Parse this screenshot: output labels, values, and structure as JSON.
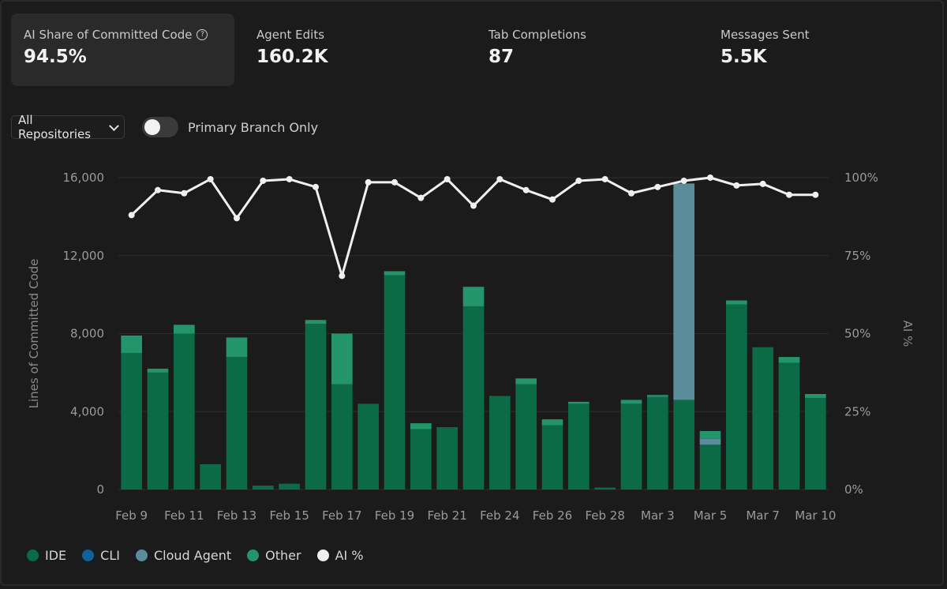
{
  "stats": [
    {
      "label": "AI Share of Committed Code",
      "value": "94.5%"
    },
    {
      "label": "Agent Edits",
      "value": "160.2K"
    },
    {
      "label": "Tab Completions",
      "value": "87"
    },
    {
      "label": "Messages Sent",
      "value": "5.5K"
    }
  ],
  "help_icon_glyph": "?",
  "filters": {
    "repository": "All Repositories",
    "primary_branch_label": "Primary Branch Only",
    "primary_branch_on": false
  },
  "colors": {
    "ide": "#0b6b47",
    "cli": "#135f99",
    "cloud_agent": "#5b8c9a",
    "other": "#24946a",
    "ai_line": "#f0f0f0"
  },
  "chart_data": {
    "type": "bar",
    "stacked": true,
    "ylabel": "Lines of Committed Code",
    "y2label": "AI %",
    "ylim": [
      0,
      16000
    ],
    "yticks": [
      "0",
      "4,000",
      "8,000",
      "12,000",
      "16,000"
    ],
    "y2ticks": [
      "0%",
      "25%",
      "50%",
      "75%",
      "100%"
    ],
    "categories": [
      "Feb 9",
      "Feb 10",
      "Feb 11",
      "Feb 12",
      "Feb 13",
      "Feb 14",
      "Feb 15",
      "Feb 16",
      "Feb 17",
      "Feb 18",
      "Feb 19",
      "Feb 20",
      "Feb 21",
      "Feb 22",
      "Feb 24",
      "Feb 25",
      "Feb 26",
      "Feb 27",
      "Feb 28",
      "Mar 1",
      "Mar 3",
      "Mar 4",
      "Mar 5",
      "Mar 6",
      "Mar 7",
      "Mar 8",
      "Mar 10"
    ],
    "xticks": [
      "Feb 9",
      "Feb 11",
      "Feb 13",
      "Feb 15",
      "Feb 17",
      "Feb 19",
      "Feb 21",
      "Feb 24",
      "Feb 26",
      "Feb 28",
      "Mar 3",
      "Mar 5",
      "Mar 7",
      "Mar 10"
    ],
    "series": [
      {
        "name": "IDE",
        "key": "ide",
        "values": [
          7000,
          6000,
          8000,
          1300,
          6800,
          200,
          300,
          8500,
          5400,
          4400,
          11000,
          3100,
          3200,
          9400,
          4800,
          5400,
          3300,
          4400,
          100,
          4400,
          4700,
          4600,
          2300,
          9500,
          7300,
          6500,
          4700
        ]
      },
      {
        "name": "CLI",
        "key": "cli",
        "values": [
          0,
          0,
          0,
          0,
          0,
          0,
          0,
          0,
          0,
          0,
          0,
          0,
          0,
          0,
          0,
          0,
          0,
          0,
          0,
          0,
          50,
          0,
          0,
          0,
          0,
          0,
          0
        ]
      },
      {
        "name": "Cloud Agent",
        "key": "cloud_agent",
        "values": [
          0,
          0,
          0,
          0,
          0,
          0,
          0,
          0,
          0,
          0,
          0,
          0,
          0,
          0,
          0,
          0,
          0,
          0,
          0,
          0,
          0,
          11100,
          300,
          0,
          0,
          0,
          0
        ]
      },
      {
        "name": "Other",
        "key": "other",
        "values": [
          900,
          200,
          450,
          0,
          1000,
          0,
          0,
          200,
          2600,
          0,
          200,
          300,
          0,
          1000,
          0,
          300,
          300,
          100,
          0,
          200,
          100,
          0,
          400,
          200,
          0,
          300,
          200
        ]
      }
    ],
    "ai_percent": [
      88,
      96,
      95,
      99.5,
      87,
      99,
      99.5,
      97,
      68.5,
      98.5,
      98.5,
      93.5,
      99.5,
      91,
      99.5,
      96,
      93,
      99,
      99.5,
      95,
      97,
      99,
      100,
      97.5,
      98,
      94.5,
      94.5
    ],
    "legend": [
      "IDE",
      "CLI",
      "Cloud Agent",
      "Other",
      "AI %"
    ]
  }
}
